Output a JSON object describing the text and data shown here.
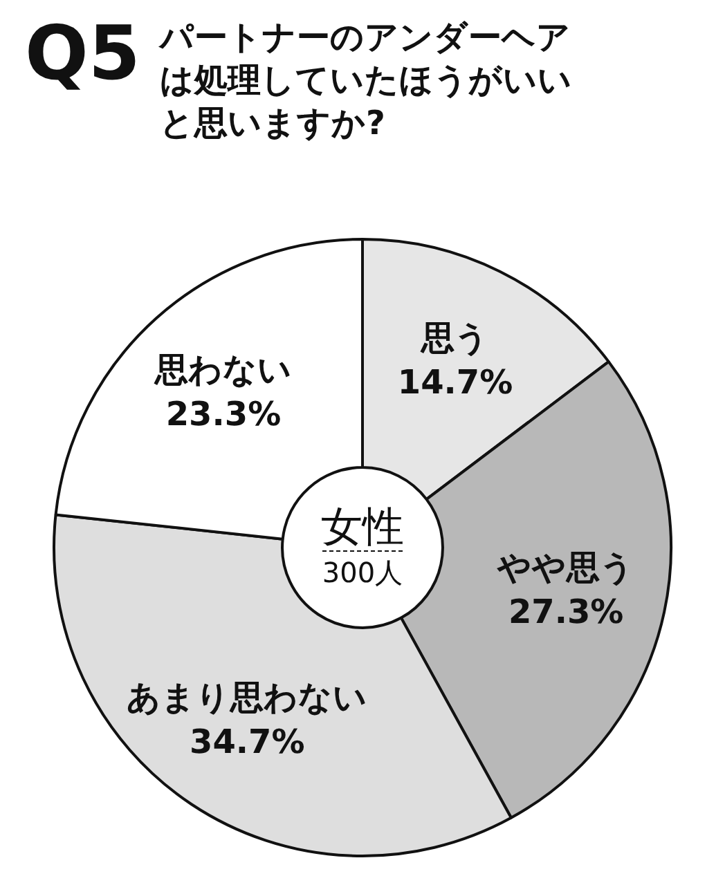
{
  "chart_data": {
    "type": "donut",
    "title": "Q5",
    "subtitle": "パートナーのアンダーヘアは処理していたほうがいいと思いますか?",
    "categories": [
      "思う",
      "やや思う",
      "あまり思わない",
      "思わない"
    ],
    "values": [
      14.7,
      27.3,
      34.7,
      23.3
    ],
    "colors": [
      "#e6e6e6",
      "#b8b8b8",
      "#dedede",
      "#ffffff"
    ],
    "value_labels": [
      "14.7%",
      "27.3%",
      "34.7%",
      "23.3%"
    ],
    "annotations": [
      "女性",
      "300人"
    ]
  }
}
